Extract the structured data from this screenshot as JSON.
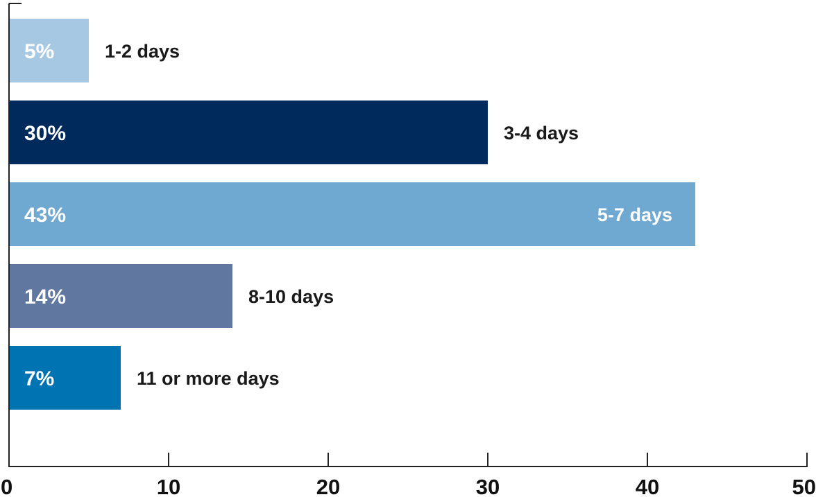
{
  "chart_data": {
    "type": "bar",
    "orientation": "horizontal",
    "categories": [
      "1-2 days",
      "3-4 days",
      "5-7 days",
      "8-10 days",
      "11 or more days"
    ],
    "values": [
      5,
      30,
      43,
      14,
      7
    ],
    "value_labels": [
      "5%",
      "30%",
      "43%",
      "14%",
      "7%"
    ],
    "colors": [
      "#a7c8e3",
      "#002a5c",
      "#6fa8d1",
      "#60779f",
      "#0073b3"
    ],
    "category_label_inside": [
      false,
      false,
      true,
      false,
      false
    ],
    "xlim": [
      0,
      50
    ],
    "xticks": [
      0,
      10,
      20,
      30,
      40,
      50
    ],
    "xtick_labels": [
      "0",
      "10",
      "20",
      "30",
      "40",
      "50"
    ],
    "title": "",
    "xlabel": "",
    "ylabel": "",
    "grid": false,
    "legend": "none"
  }
}
